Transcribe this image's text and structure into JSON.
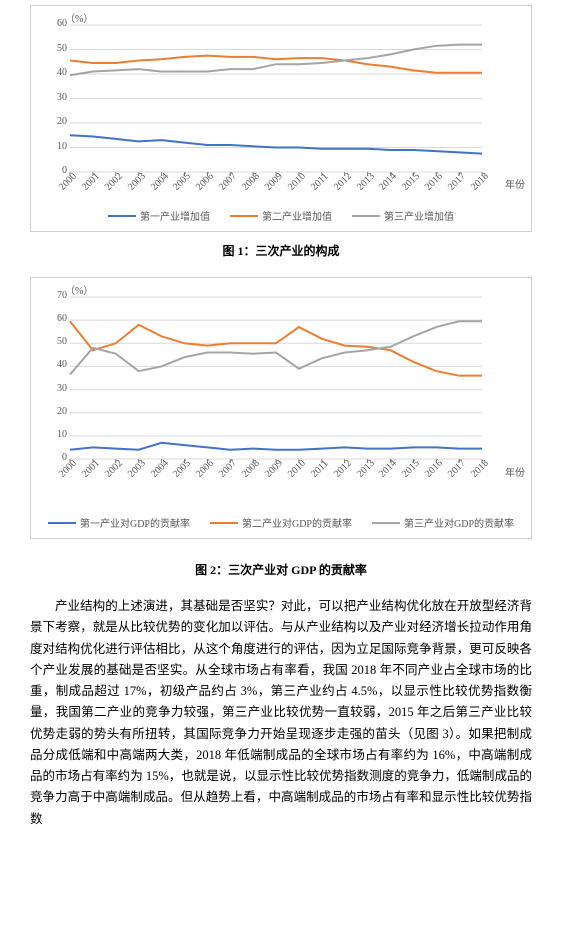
{
  "chart1": {
    "type": "line",
    "y_unit": "（%）",
    "x_unit": "年份",
    "ylim": [
      0,
      60
    ],
    "ytick_step": 10,
    "years": [
      2000,
      2001,
      2002,
      2003,
      2004,
      2005,
      2006,
      2007,
      2008,
      2009,
      2010,
      2011,
      2012,
      2013,
      2014,
      2015,
      2016,
      2017,
      2018
    ],
    "series": [
      {
        "name": "第一产业增加值",
        "color": "#4472c4",
        "values": [
          15,
          14.5,
          13.5,
          12.5,
          13,
          12,
          11,
          11,
          10.5,
          10,
          10,
          9.5,
          9.5,
          9.5,
          9,
          9,
          8.5,
          8,
          7.5
        ]
      },
      {
        "name": "第二产业增加值",
        "color": "#ed7d31",
        "values": [
          45.5,
          44.5,
          44.5,
          45.5,
          46,
          47,
          47.5,
          47,
          47,
          46,
          46.5,
          46.5,
          45.5,
          44,
          43,
          41.5,
          40.5,
          40.5,
          40.5
        ]
      },
      {
        "name": "第三产业增加值",
        "color": "#a5a5a5",
        "values": [
          39.5,
          41,
          41.5,
          42,
          41,
          41,
          41,
          42,
          42,
          44,
          44,
          44.5,
          45.5,
          46.5,
          48,
          50,
          51.5,
          52,
          52
        ]
      }
    ],
    "legend_labels": [
      "第一产业增加值",
      "第二产业增加值",
      "第三产业增加值"
    ],
    "grid_color": "#d9d9d9",
    "title": "图 1：三次产业的构成"
  },
  "chart2": {
    "type": "line",
    "y_unit": "（%）",
    "x_unit": "年份",
    "ylim": [
      0,
      70
    ],
    "ytick_step": 10,
    "years": [
      2000,
      2001,
      2002,
      2003,
      2004,
      2005,
      2006,
      2007,
      2008,
      2009,
      2010,
      2011,
      2012,
      2013,
      2014,
      2015,
      2016,
      2017,
      2018
    ],
    "series": [
      {
        "name": "第一产业对GDP的贡献率",
        "color": "#4472c4",
        "values": [
          4,
          5,
          4.5,
          4,
          7,
          6,
          5,
          4,
          4.5,
          4,
          4,
          4.5,
          5,
          4.5,
          4.5,
          5,
          5,
          4.5,
          4.5
        ]
      },
      {
        "name": "第二产业对GDP的贡献率",
        "color": "#ed7d31",
        "values": [
          59.5,
          47,
          50,
          58,
          53,
          50,
          49,
          50,
          50,
          50,
          57,
          52,
          49,
          48.5,
          47,
          42,
          38,
          36,
          36
        ]
      },
      {
        "name": "第三产业对GDP的贡献率",
        "color": "#a5a5a5",
        "values": [
          36.5,
          48,
          45.5,
          38,
          40,
          44,
          46,
          46,
          45.5,
          46,
          39,
          43.5,
          46,
          47,
          48.5,
          53,
          57,
          59.5,
          59.5
        ]
      }
    ],
    "legend_labels": [
      "第一产业对GDP的贡献率",
      "第二产业对GDP的贡献率",
      "第三产业对GDP的贡献率"
    ],
    "grid_color": "#d9d9d9",
    "title": "图 2：三次产业对 GDP 的贡献率"
  },
  "paragraph": "产业结构的上述演进，其基础是否坚实？对此，可以把产业结构优化放在开放型经济背景下考察，就是从比较优势的变化加以评估。与从产业结构以及产业对经济增长拉动作用角度对结构优化进行评估相比，从这个角度进行的评估，因为立足国际竞争背景，更可反映各个产业发展的基础是否坚实。从全球市场占有率看，我国 2018 年不同产业占全球市场的比重，制成品超过 17%，初级产品约占 3%，第三产业约占 4.5%，以显示性比较优势指数衡量，我国第二产业的竞争力较强，第三产业比较优势一直较弱，2015 年之后第三产业比较优势走弱的势头有所扭转，其国际竞争力开始呈现逐步走强的苗头（见图 3）。如果把制成品分成低端和中高端两大类，2018 年低端制成品的全球市场占有率约为 16%，中高端制成品的市场占有率约为 15%，也就是说，以显示性比较优势指数测度的竞争力，低端制成品的竞争力高于中高端制成品。但从趋势上看，中高端制成品的市场占有率和显示性比较优势指数"
}
